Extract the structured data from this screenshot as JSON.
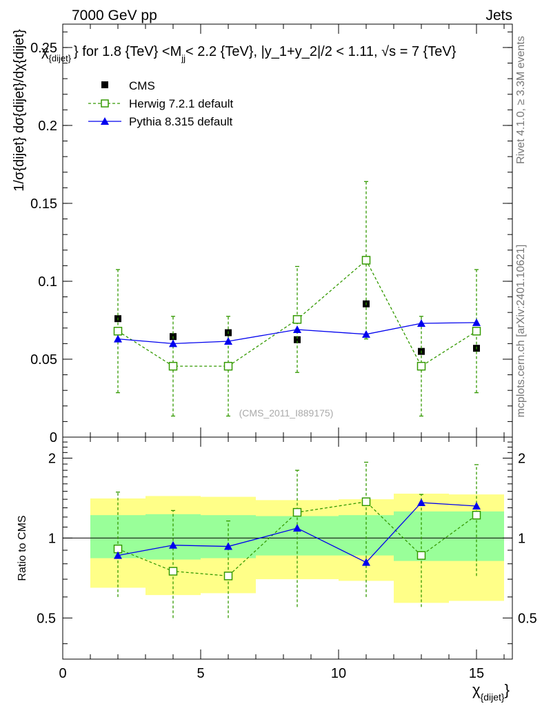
{
  "header": {
    "left_label": "7000 GeV pp",
    "right_label": "Jets"
  },
  "side_labels": {
    "rivet": "Rivet 4.1.0, ≥ 3.3M events",
    "source": "mcplots.cern.ch [arXiv:2401.10621]"
  },
  "watermark": "(CMS_2011_I889175)",
  "chart_data": [
    {
      "panel": "main",
      "type": "scatter",
      "title_prefix": "χ",
      "title_prefix_sub": "{dijet}",
      "title_mid": "} for 1.8 {TeV} <M",
      "title_mid_sub": "jj",
      "title_suffix": "< 2.2 {TeV}, |y_1+y_2|/2 < 1.11, √s = 7 {TeV}",
      "ylabel": "1/σ{dijet} dσ{dijet}/dχ{dijet}",
      "ylim": [
        0,
        0.265
      ],
      "yticks": [
        0,
        0.05,
        0.1,
        0.15,
        0.2,
        0.25
      ],
      "ytick_labels": [
        "0",
        "0.05",
        "0.1",
        "0.15",
        "0.2",
        "0.25"
      ],
      "legend_position": "top-left",
      "series": [
        {
          "name": "CMS",
          "style": "data",
          "color": "#000000",
          "x": [
            2,
            4,
            6,
            8.5,
            11,
            13,
            15
          ],
          "y": [
            0.076,
            0.0645,
            0.067,
            0.0625,
            0.0855,
            0.055,
            0.057
          ],
          "yerr": [
            0.002,
            0.002,
            0.002,
            0.002,
            0.003,
            0.002,
            0.002
          ]
        },
        {
          "name": "Herwig 7.2.1 default",
          "style": "dashed-open-square",
          "color": "#339900",
          "x": [
            2,
            4,
            6,
            8.5,
            11,
            13,
            15
          ],
          "y": [
            0.068,
            0.0455,
            0.0455,
            0.0755,
            0.1135,
            0.0455,
            0.068
          ],
          "yerr": [
            0.0395,
            0.032,
            0.032,
            0.034,
            0.0505,
            0.032,
            0.0395
          ]
        },
        {
          "name": "Pythia 8.315 default",
          "style": "solid-filled-triangle",
          "color": "#0000ee",
          "x": [
            2,
            4,
            6,
            8.5,
            11,
            13,
            15
          ],
          "y": [
            0.063,
            0.06,
            0.0615,
            0.069,
            0.066,
            0.073,
            0.0735
          ],
          "yerr": [
            0.0008,
            0.0008,
            0.0008,
            0.0008,
            0.0008,
            0.0008,
            0.0008
          ]
        }
      ]
    },
    {
      "panel": "ratio",
      "type": "line",
      "ylabel": "Ratio to CMS",
      "xlabel": "χ",
      "xlabel_sub": "{dijet}",
      "xlim": [
        0,
        16.3
      ],
      "xticks": [
        0,
        5,
        10,
        15
      ],
      "xtick_labels": [
        "0",
        "5",
        "10",
        "15"
      ],
      "ylim": [
        0.35,
        2.4
      ],
      "yticks": [
        0.5,
        1,
        2
      ],
      "ytick_labels": [
        "0.5",
        "1",
        "2"
      ],
      "reference_line": 1,
      "bands": {
        "bin_edges": [
          1,
          3,
          5,
          7,
          10,
          12,
          14,
          16
        ],
        "inner_color": "#99ff99",
        "outer_color": "#ffff88",
        "inner_low": [
          0.84,
          0.83,
          0.84,
          0.86,
          0.86,
          0.82,
          0.82
        ],
        "inner_high": [
          1.22,
          1.23,
          1.22,
          1.21,
          1.22,
          1.26,
          1.26
        ],
        "outer_low": [
          0.65,
          0.61,
          0.62,
          0.7,
          0.69,
          0.57,
          0.58
        ],
        "outer_high": [
          1.41,
          1.44,
          1.43,
          1.39,
          1.4,
          1.47,
          1.46
        ]
      },
      "series": [
        {
          "name": "Herwig 7.2.1 default",
          "style": "dashed-open-square",
          "color": "#339900",
          "x": [
            2,
            4,
            6,
            8.5,
            11,
            13,
            15
          ],
          "y": [
            0.91,
            0.75,
            0.72,
            1.25,
            1.37,
            0.86,
            1.22
          ],
          "err_low": [
            0.6,
            0.5,
            0.5,
            0.55,
            0.6,
            0.55,
            0.72
          ],
          "err_high": [
            1.49,
            1.27,
            1.16,
            1.8,
            1.93,
            1.46,
            1.89
          ]
        },
        {
          "name": "Pythia 8.315 default",
          "style": "solid-filled-triangle",
          "color": "#0000ee",
          "x": [
            2,
            4,
            6,
            8.5,
            11,
            13,
            15
          ],
          "y": [
            0.86,
            0.94,
            0.93,
            1.09,
            0.81,
            1.36,
            1.32
          ]
        }
      ]
    }
  ]
}
